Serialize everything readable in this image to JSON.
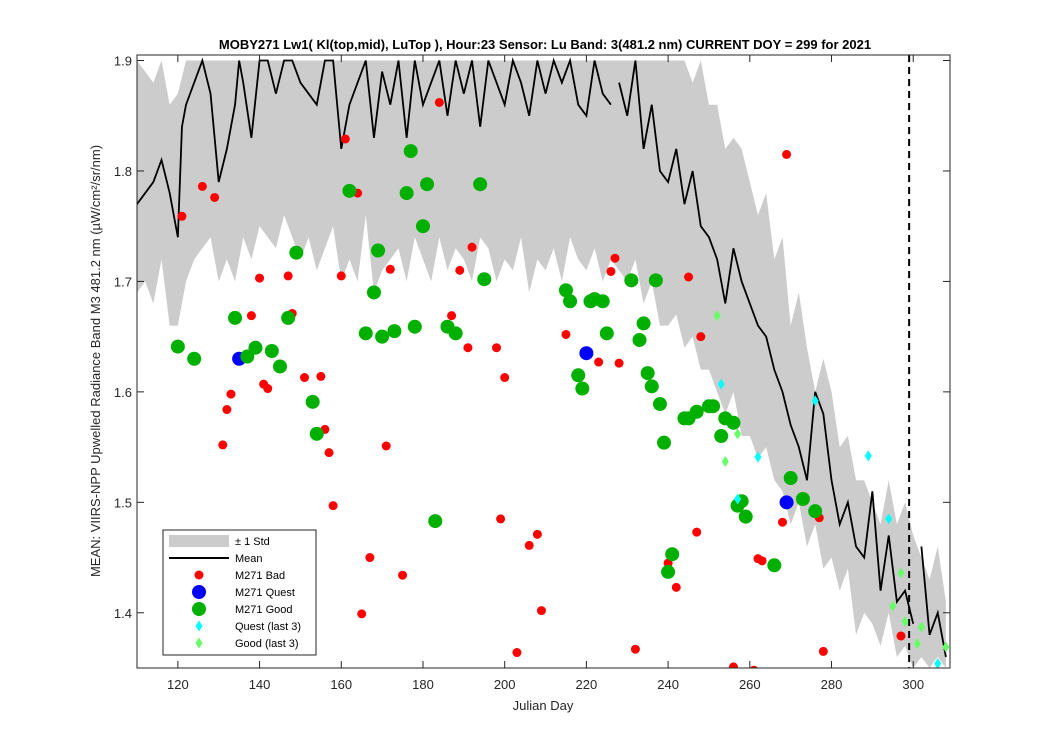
{
  "chart_data": {
    "type": "scatter",
    "title": "MOBY271   Lw1( Kl(top,mid), LuTop ),   Hour:23 Sensor: Lu Band: 3(481.2 nm)   CURRENT DOY = 299 for 2021",
    "xlabel": "Julian Day",
    "ylabel": "MEAN: VIIRS-NPP Upwelled Radiance Band M3 481.2 nm (µW/cm²/sr/nm)",
    "xlim": [
      110,
      309
    ],
    "ylim": [
      1.35,
      1.905
    ],
    "x_ticks": [
      120,
      140,
      160,
      180,
      200,
      220,
      240,
      260,
      280,
      300
    ],
    "y_ticks": [
      1.4,
      1.5,
      1.6,
      1.7,
      1.8,
      1.9
    ],
    "x_tick_labels": [
      "120",
      "140",
      "160",
      "180",
      "200",
      "220",
      "240",
      "260",
      "280",
      "300"
    ],
    "y_tick_labels": [
      "1.4",
      "1.5",
      "1.6",
      "1.7",
      "1.8",
      "1.9"
    ],
    "current_doy_line": 299,
    "grid": false,
    "legend_position": "bottom-left",
    "legend": [
      {
        "key": "std",
        "label": "± 1 Std",
        "marker": "patch",
        "color": "#cccccc"
      },
      {
        "key": "mean",
        "label": "Mean",
        "marker": "line",
        "color": "#000000"
      },
      {
        "key": "bad",
        "label": "M271 Bad",
        "marker": "circle-small",
        "color": "#ff0000"
      },
      {
        "key": "quest",
        "label": "M271 Quest",
        "marker": "circle-large",
        "color": "#0000ff"
      },
      {
        "key": "good",
        "label": "M271 Good",
        "marker": "circle-large",
        "color": "#00b000"
      },
      {
        "key": "quest3",
        "label": "Quest (last 3)",
        "marker": "diamond",
        "color": "#00ffff"
      },
      {
        "key": "good3",
        "label": "Good (last 3)",
        "marker": "diamond",
        "color": "#66ff66"
      }
    ],
    "mean_series": {
      "x": [
        110,
        112,
        114,
        116,
        118,
        120,
        121,
        122,
        124,
        126,
        128,
        130,
        132,
        134,
        135,
        136,
        138,
        140,
        142,
        144,
        146,
        148,
        150,
        152,
        154,
        156,
        158,
        160,
        162,
        164,
        166,
        168,
        170,
        172,
        174,
        176,
        178,
        180,
        182,
        184,
        186,
        188,
        190,
        192,
        194,
        196,
        198,
        200,
        202,
        204,
        206,
        208,
        210,
        212,
        214,
        216,
        218,
        220,
        222,
        224,
        226,
        228,
        230,
        232,
        234,
        236,
        238,
        240,
        242,
        244,
        246,
        248,
        250,
        252,
        254,
        256,
        258,
        260,
        262,
        264,
        266,
        268,
        270,
        272,
        274,
        276,
        278,
        280,
        282,
        284,
        286,
        288,
        290,
        292,
        294,
        296,
        298,
        300,
        302,
        304,
        306,
        308
      ],
      "y": [
        1.77,
        1.78,
        1.79,
        1.81,
        1.78,
        1.74,
        1.84,
        1.86,
        1.88,
        1.9,
        1.87,
        1.79,
        1.82,
        1.86,
        1.9,
        1.88,
        1.83,
        1.9,
        1.9,
        1.87,
        1.9,
        1.9,
        1.88,
        1.87,
        1.86,
        1.9,
        1.9,
        1.82,
        1.86,
        1.88,
        1.9,
        1.83,
        1.89,
        1.86,
        1.9,
        1.83,
        1.9,
        1.86,
        1.88,
        1.9,
        1.85,
        1.9,
        1.87,
        1.9,
        1.84,
        1.9,
        1.88,
        1.86,
        1.9,
        1.88,
        1.85,
        1.9,
        1.87,
        1.9,
        1.88,
        1.9,
        1.86,
        1.85,
        1.9,
        1.87,
        1.86,
        1.88,
        1.85,
        1.9,
        1.82,
        1.86,
        1.8,
        1.79,
        1.82,
        1.77,
        1.8,
        1.75,
        1.74,
        1.72,
        1.68,
        1.73,
        1.7,
        1.68,
        1.66,
        1.65,
        1.62,
        1.6,
        1.57,
        1.55,
        1.52,
        1.6,
        1.58,
        1.52,
        1.48,
        1.5,
        1.46,
        1.45,
        1.51,
        1.42,
        1.47,
        1.41,
        1.42,
        1.39,
        1.46,
        1.38,
        1.4,
        1.36
      ],
      "gaps_after_x": [
        226,
        300
      ]
    },
    "std_band": {
      "x": [
        110,
        112,
        114,
        116,
        118,
        120,
        122,
        124,
        126,
        128,
        130,
        132,
        134,
        136,
        138,
        140,
        142,
        144,
        146,
        148,
        150,
        152,
        154,
        156,
        158,
        160,
        162,
        164,
        166,
        168,
        170,
        172,
        174,
        176,
        178,
        180,
        182,
        184,
        186,
        188,
        190,
        192,
        194,
        196,
        198,
        200,
        202,
        204,
        206,
        208,
        210,
        212,
        214,
        216,
        218,
        220,
        222,
        224,
        226,
        228,
        230,
        232,
        234,
        236,
        238,
        240,
        242,
        244,
        246,
        248,
        250,
        252,
        254,
        256,
        258,
        260,
        262,
        264,
        266,
        268,
        270,
        272,
        274,
        276,
        278,
        280,
        282,
        284,
        286,
        288,
        290,
        292,
        294,
        296,
        298,
        300,
        302,
        304,
        306,
        308
      ],
      "upper": [
        1.9,
        1.89,
        1.88,
        1.9,
        1.86,
        1.87,
        1.9,
        1.9,
        1.9,
        1.9,
        1.9,
        1.9,
        1.9,
        1.9,
        1.9,
        1.9,
        1.9,
        1.9,
        1.9,
        1.9,
        1.9,
        1.9,
        1.9,
        1.9,
        1.9,
        1.9,
        1.9,
        1.9,
        1.9,
        1.9,
        1.9,
        1.9,
        1.9,
        1.9,
        1.9,
        1.9,
        1.9,
        1.9,
        1.9,
        1.9,
        1.9,
        1.9,
        1.9,
        1.9,
        1.9,
        1.9,
        1.9,
        1.9,
        1.9,
        1.9,
        1.9,
        1.9,
        1.9,
        1.9,
        1.9,
        1.9,
        1.9,
        1.9,
        1.9,
        1.9,
        1.9,
        1.9,
        1.9,
        1.9,
        1.9,
        1.9,
        1.9,
        1.9,
        1.88,
        1.9,
        1.86,
        1.86,
        1.82,
        1.83,
        1.82,
        1.79,
        1.76,
        1.78,
        1.72,
        1.74,
        1.66,
        1.69,
        1.64,
        1.6,
        1.63,
        1.6,
        1.55,
        1.56,
        1.52,
        1.52,
        1.5,
        1.48,
        1.52,
        1.48,
        1.5,
        1.47,
        1.45,
        1.43,
        1.46,
        1.41
      ],
      "lower": [
        1.69,
        1.7,
        1.68,
        1.72,
        1.66,
        1.66,
        1.7,
        1.72,
        1.73,
        1.74,
        1.7,
        1.72,
        1.7,
        1.74,
        1.72,
        1.75,
        1.74,
        1.73,
        1.76,
        1.74,
        1.72,
        1.74,
        1.71,
        1.73,
        1.75,
        1.7,
        1.72,
        1.7,
        1.76,
        1.69,
        1.71,
        1.72,
        1.73,
        1.7,
        1.74,
        1.72,
        1.7,
        1.74,
        1.71,
        1.73,
        1.72,
        1.7,
        1.74,
        1.73,
        1.7,
        1.72,
        1.71,
        1.74,
        1.69,
        1.72,
        1.71,
        1.73,
        1.7,
        1.74,
        1.72,
        1.71,
        1.73,
        1.7,
        1.72,
        1.71,
        1.7,
        1.72,
        1.68,
        1.7,
        1.66,
        1.66,
        1.67,
        1.64,
        1.65,
        1.62,
        1.62,
        1.6,
        1.58,
        1.6,
        1.56,
        1.56,
        1.54,
        1.55,
        1.52,
        1.51,
        1.48,
        1.5,
        1.46,
        1.48,
        1.44,
        1.45,
        1.42,
        1.44,
        1.38,
        1.4,
        1.39,
        1.37,
        1.4,
        1.36,
        1.37,
        1.35,
        1.36,
        1.35,
        1.36,
        1.35
      ]
    },
    "series": [
      {
        "key": "bad",
        "name": "M271 Bad",
        "points": [
          [
            121,
            1.759
          ],
          [
            126,
            1.786
          ],
          [
            129,
            1.776
          ],
          [
            131,
            1.552
          ],
          [
            132,
            1.584
          ],
          [
            133,
            1.598
          ],
          [
            138,
            1.669
          ],
          [
            140,
            1.703
          ],
          [
            141,
            1.607
          ],
          [
            142,
            1.603
          ],
          [
            147,
            1.705
          ],
          [
            148,
            1.671
          ],
          [
            151,
            1.613
          ],
          [
            155,
            1.614
          ],
          [
            156,
            1.566
          ],
          [
            157,
            1.545
          ],
          [
            158,
            1.497
          ],
          [
            160,
            1.705
          ],
          [
            161,
            1.829
          ],
          [
            164,
            1.78
          ],
          [
            165,
            1.399
          ],
          [
            167,
            1.45
          ],
          [
            171,
            1.551
          ],
          [
            172,
            1.711
          ],
          [
            175,
            1.434
          ],
          [
            184,
            1.862
          ],
          [
            187,
            1.669
          ],
          [
            189,
            1.71
          ],
          [
            191,
            1.64
          ],
          [
            192,
            1.731
          ],
          [
            198,
            1.64
          ],
          [
            199,
            1.485
          ],
          [
            200,
            1.613
          ],
          [
            203,
            1.364
          ],
          [
            206,
            1.461
          ],
          [
            208,
            1.471
          ],
          [
            209,
            1.402
          ],
          [
            215,
            1.652
          ],
          [
            223,
            1.627
          ],
          [
            226,
            1.709
          ],
          [
            227,
            1.721
          ],
          [
            228,
            1.626
          ],
          [
            232,
            1.367
          ],
          [
            240,
            1.445
          ],
          [
            242,
            1.423
          ],
          [
            245,
            1.704
          ],
          [
            247,
            1.473
          ],
          [
            248,
            1.65
          ],
          [
            256,
            1.351
          ],
          [
            261,
            1.348
          ],
          [
            262,
            1.449
          ],
          [
            263,
            1.447
          ],
          [
            268,
            1.482
          ],
          [
            269,
            1.815
          ],
          [
            277,
            1.486
          ],
          [
            278,
            1.365
          ],
          [
            297,
            1.379
          ]
        ]
      },
      {
        "key": "quest",
        "name": "M271 Quest",
        "points": [
          [
            135,
            1.63
          ],
          [
            220,
            1.635
          ],
          [
            269,
            1.5
          ]
        ]
      },
      {
        "key": "good",
        "name": "M271 Good",
        "points": [
          [
            120,
            1.641
          ],
          [
            124,
            1.63
          ],
          [
            134,
            1.667
          ],
          [
            137,
            1.632
          ],
          [
            139,
            1.64
          ],
          [
            143,
            1.637
          ],
          [
            145,
            1.623
          ],
          [
            147,
            1.667
          ],
          [
            149,
            1.726
          ],
          [
            153,
            1.591
          ],
          [
            154,
            1.562
          ],
          [
            162,
            1.782
          ],
          [
            166,
            1.653
          ],
          [
            168,
            1.69
          ],
          [
            169,
            1.728
          ],
          [
            170,
            1.65
          ],
          [
            173,
            1.655
          ],
          [
            176,
            1.78
          ],
          [
            177,
            1.818
          ],
          [
            178,
            1.659
          ],
          [
            180,
            1.75
          ],
          [
            181,
            1.788
          ],
          [
            183,
            1.483
          ],
          [
            186,
            1.659
          ],
          [
            188,
            1.653
          ],
          [
            194,
            1.788
          ],
          [
            195,
            1.702
          ],
          [
            215,
            1.692
          ],
          [
            216,
            1.682
          ],
          [
            218,
            1.615
          ],
          [
            219,
            1.603
          ],
          [
            221,
            1.682
          ],
          [
            222,
            1.684
          ],
          [
            224,
            1.682
          ],
          [
            225,
            1.653
          ],
          [
            231,
            1.701
          ],
          [
            233,
            1.647
          ],
          [
            234,
            1.662
          ],
          [
            235,
            1.617
          ],
          [
            236,
            1.605
          ],
          [
            237,
            1.701
          ],
          [
            238,
            1.589
          ],
          [
            239,
            1.554
          ],
          [
            240,
            1.437
          ],
          [
            241,
            1.453
          ],
          [
            244,
            1.576
          ],
          [
            245,
            1.576
          ],
          [
            247,
            1.582
          ],
          [
            250,
            1.587
          ],
          [
            251,
            1.587
          ],
          [
            253,
            1.56
          ],
          [
            254,
            1.576
          ],
          [
            256,
            1.572
          ],
          [
            257,
            1.497
          ],
          [
            258,
            1.501
          ],
          [
            259,
            1.487
          ],
          [
            266,
            1.443
          ],
          [
            270,
            1.522
          ],
          [
            273,
            1.503
          ],
          [
            276,
            1.492
          ]
        ]
      },
      {
        "key": "quest3",
        "name": "Quest (last 3)",
        "points": [
          [
            253,
            1.607
          ],
          [
            257,
            1.503
          ],
          [
            262,
            1.541
          ],
          [
            276,
            1.592
          ],
          [
            289,
            1.542
          ],
          [
            294,
            1.485
          ],
          [
            306,
            1.354
          ]
        ]
      },
      {
        "key": "good3",
        "name": "Good (last 3)",
        "points": [
          [
            252,
            1.669
          ],
          [
            254,
            1.537
          ],
          [
            257,
            1.562
          ],
          [
            295,
            1.406
          ],
          [
            297,
            1.436
          ],
          [
            298,
            1.392
          ],
          [
            301,
            1.372
          ],
          [
            302,
            1.387
          ],
          [
            308,
            1.369
          ]
        ]
      }
    ]
  }
}
